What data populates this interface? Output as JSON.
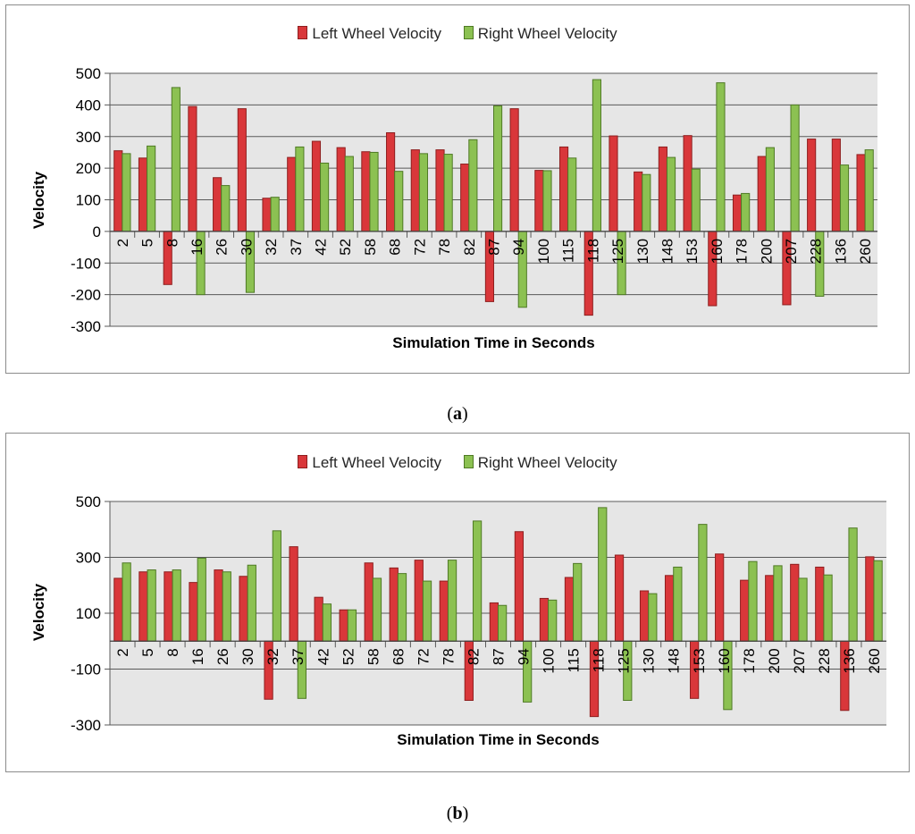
{
  "colors": {
    "left": "#d9373a",
    "right": "#8cc152",
    "left_stroke": "#8e1f1f",
    "right_stroke": "#4f7a25",
    "plot_bg": "#e6e6e6",
    "grid": "#595959"
  },
  "chart_data": [
    {
      "type": "bar",
      "id": "a",
      "caption_label": "a",
      "ylabel": "Velocity",
      "xlabel": "Simulation Time in Seconds",
      "legend_position": "top-center",
      "ylim": [
        -300,
        500
      ],
      "yticks": [
        500,
        400,
        300,
        200,
        100,
        0,
        -100,
        -200,
        -300
      ],
      "categories": [
        "2",
        "5",
        "8",
        "16",
        "26",
        "30",
        "32",
        "37",
        "42",
        "52",
        "58",
        "68",
        "72",
        "78",
        "82",
        "87",
        "94",
        "100",
        "115",
        "118",
        "125",
        "130",
        "148",
        "153",
        "160",
        "178",
        "200",
        "207",
        "228",
        "136",
        "260"
      ],
      "series": [
        {
          "name": "Left Wheel Velocity",
          "values": [
            255,
            232,
            -168,
            395,
            170,
            388,
            105,
            234,
            285,
            265,
            252,
            312,
            258,
            258,
            213,
            -222,
            388,
            193,
            267,
            -265,
            302,
            188,
            267,
            303,
            -235,
            115,
            237,
            -232,
            292,
            292,
            243
          ]
        },
        {
          "name": "Right Wheel Velocity",
          "values": [
            246,
            270,
            455,
            -200,
            145,
            -193,
            108,
            267,
            216,
            237,
            250,
            190,
            246,
            244,
            290,
            397,
            -240,
            192,
            232,
            480,
            -200,
            180,
            234,
            197,
            470,
            120,
            265,
            400,
            -205,
            210,
            258
          ]
        }
      ]
    },
    {
      "type": "bar",
      "id": "b",
      "caption_label": "b",
      "ylabel": "Velocity",
      "xlabel": "Simulation Time in Seconds",
      "legend_position": "top-center",
      "ylim": [
        -300,
        500
      ],
      "yticks": [
        500,
        300,
        100,
        -100,
        -300
      ],
      "categories": [
        "2",
        "5",
        "8",
        "16",
        "26",
        "30",
        "32",
        "37",
        "42",
        "52",
        "58",
        "68",
        "72",
        "78",
        "82",
        "87",
        "94",
        "100",
        "115",
        "118",
        "125",
        "130",
        "148",
        "153",
        "160",
        "178",
        "200",
        "207",
        "228",
        "136",
        "260"
      ],
      "series": [
        {
          "name": "Left Wheel Velocity",
          "values": [
            225,
            248,
            248,
            210,
            255,
            232,
            -208,
            338,
            157,
            112,
            280,
            262,
            290,
            215,
            -212,
            137,
            392,
            153,
            228,
            -270,
            308,
            180,
            235,
            -205,
            312,
            218,
            235,
            275,
            265,
            -248,
            302
          ]
        },
        {
          "name": "Right Wheel Velocity",
          "values": [
            280,
            255,
            255,
            297,
            248,
            272,
            395,
            -205,
            133,
            112,
            225,
            242,
            215,
            290,
            430,
            128,
            -218,
            147,
            278,
            478,
            -212,
            170,
            265,
            418,
            -245,
            285,
            270,
            225,
            237,
            405,
            288
          ]
        }
      ]
    }
  ]
}
